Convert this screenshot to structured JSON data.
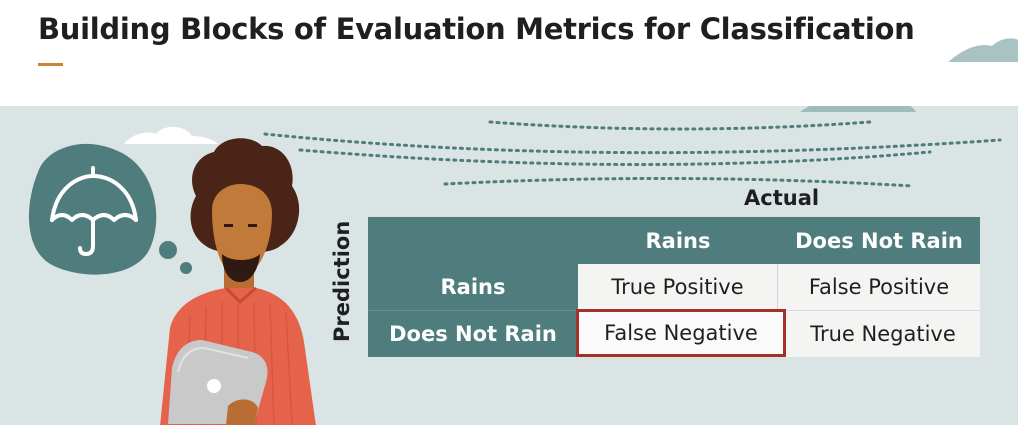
{
  "title": "Building Blocks of Evaluation Metrics for Classification",
  "accent_color": "#c9822d",
  "header_fill": "#4f7c7d",
  "highlight_color": "#a23229",
  "matrix": {
    "actual_label": "Actual",
    "prediction_label": "Prediction",
    "col_headers": [
      "Rains",
      "Does Not Rain"
    ],
    "row_headers": [
      "Rains",
      "Does Not Rain"
    ],
    "cells": [
      [
        "True Positive",
        "False Positive"
      ],
      [
        "False Negative",
        "True Negative"
      ]
    ],
    "highlighted_cell": "False Negative"
  },
  "icons": {
    "thought_bubble": "umbrella-icon",
    "person": "person-illustration"
  }
}
